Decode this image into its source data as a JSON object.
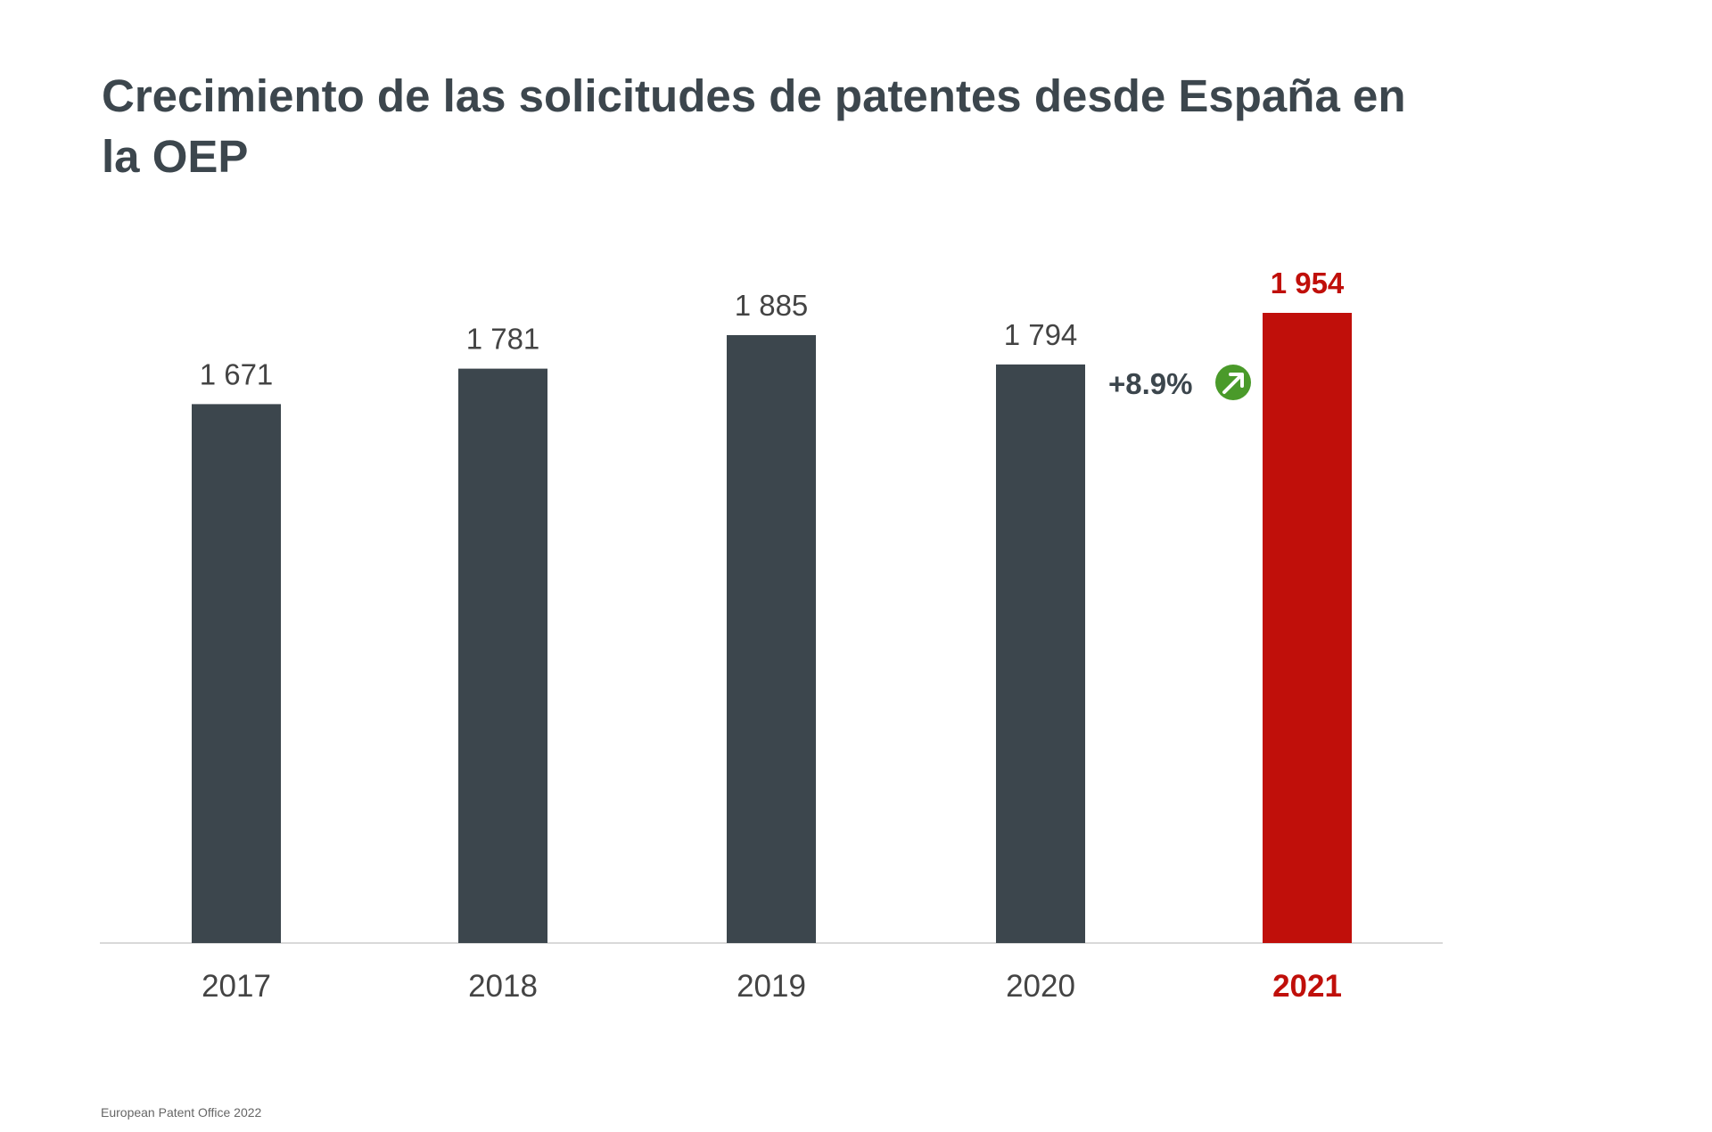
{
  "chart_data": {
    "type": "bar",
    "title": "Crecimiento de las solicitudes de patentes desde España en la OEP",
    "categories": [
      "2017",
      "2018",
      "2019",
      "2020",
      "2021"
    ],
    "values": [
      1671,
      1781,
      1885,
      1794,
      1954
    ],
    "value_labels": [
      "1 671",
      "1 781",
      "1 885",
      "1 794",
      "1 954"
    ],
    "highlight_index": 4,
    "xlabel": "",
    "ylabel": "",
    "ylim": [
      0,
      2350
    ],
    "grid": false,
    "legend": "none",
    "annotation": {
      "text": "+8.9%",
      "icon": "arrow-up-right-icon",
      "between": [
        "2020",
        "2021"
      ]
    },
    "colors": {
      "bar": "#3c464d",
      "highlight": "#c00f0a",
      "growth_icon": "#4a9a2a",
      "axis": "#d9d9d9",
      "text": "#3c464d"
    }
  },
  "header": {
    "title": "Crecimiento de las solicitudes de patentes desde España en la OEP"
  },
  "footer": {
    "source": "European Patent Office 2022"
  }
}
